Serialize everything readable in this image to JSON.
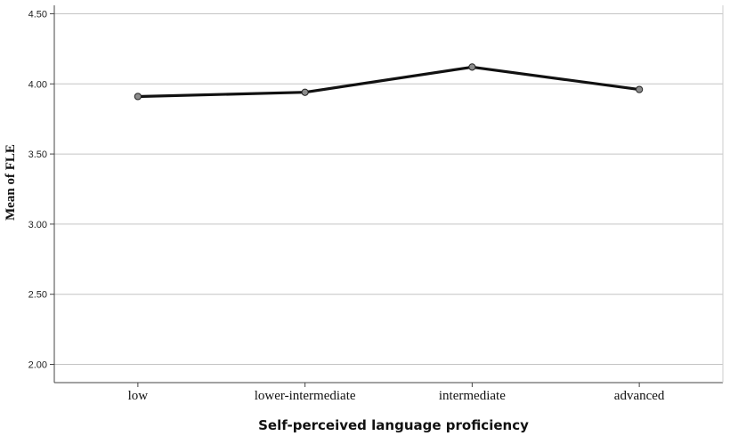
{
  "chart_data": {
    "type": "line",
    "categories": [
      "low",
      "lower-intermediate",
      "intermediate",
      "advanced"
    ],
    "values": [
      3.91,
      3.94,
      4.12,
      3.96
    ],
    "xlabel": "Self-perceived language proficiency",
    "ylabel": "Mean of FLE",
    "ylim": [
      1.87,
      4.56
    ],
    "yticks": [
      "2.00",
      "2.50",
      "3.00",
      "3.50",
      "4.00",
      "4.50"
    ],
    "ytick_values": [
      2.0,
      2.5,
      3.0,
      3.5,
      4.0,
      4.5
    ],
    "grid": "horizontal",
    "line_color": "#111111",
    "marker_fill": "#8c8c8c",
    "grid_color": "#c4c4c4"
  }
}
